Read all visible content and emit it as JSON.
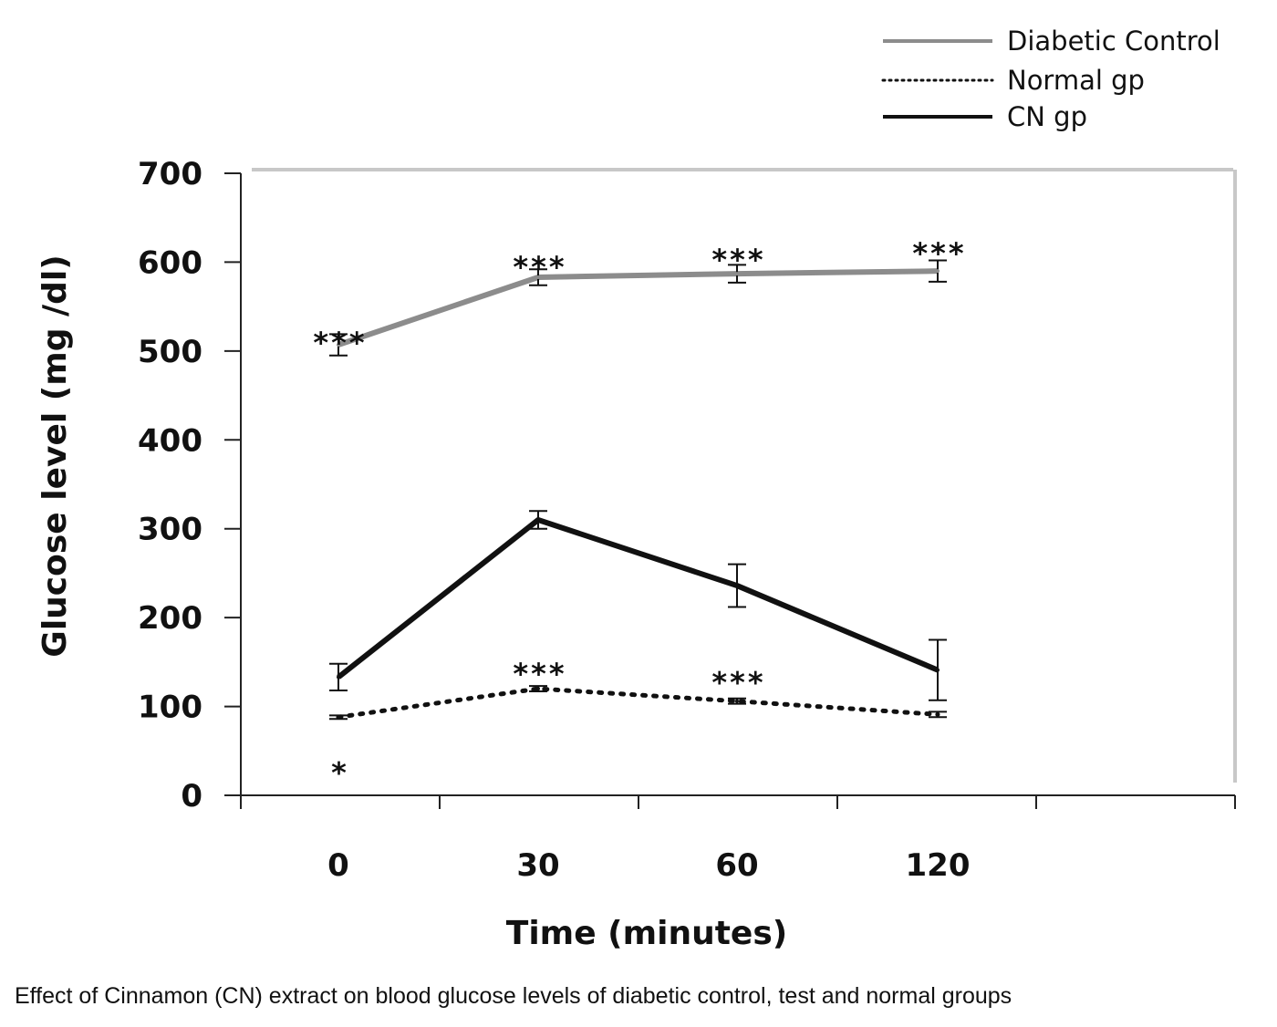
{
  "caption": "Effect of Cinnamon (CN) extract on blood glucose levels of diabetic control, test and normal groups",
  "colors": {
    "diabetic_control": "#8c8c8c",
    "normal_gp": "#111111",
    "cn_gp": "#111111",
    "plot_border": "#c8c8c8"
  },
  "chart_data": {
    "type": "line",
    "title": "",
    "xlabel": "Time (minutes)",
    "ylabel": "Glucose level (mg /dl)",
    "categories": [
      "0",
      "30",
      "60",
      "120"
    ],
    "ylim": [
      0,
      700
    ],
    "yticks": [
      0,
      100,
      200,
      300,
      400,
      500,
      600,
      700
    ],
    "grid": false,
    "legend_position": "top-right",
    "series": [
      {
        "name": "Diabetic Control",
        "line_style": "solid",
        "color": "#8c8c8c",
        "values": [
          507,
          583,
          587,
          590
        ],
        "errors": [
          12,
          9,
          10,
          12
        ],
        "annotations": [
          "***",
          "***",
          "***",
          "***"
        ]
      },
      {
        "name": "Normal gp",
        "line_style": "dotted",
        "color": "#111111",
        "values": [
          88,
          120,
          106,
          91
        ],
        "errors": [
          2,
          3,
          3,
          3
        ],
        "annotations": [
          "*",
          "***",
          "***",
          ""
        ]
      },
      {
        "name": "CN gp",
        "line_style": "solid",
        "color": "#111111",
        "values": [
          133,
          310,
          236,
          141
        ],
        "errors": [
          15,
          10,
          24,
          34
        ],
        "annotations": [
          "",
          "",
          "",
          ""
        ]
      }
    ]
  }
}
